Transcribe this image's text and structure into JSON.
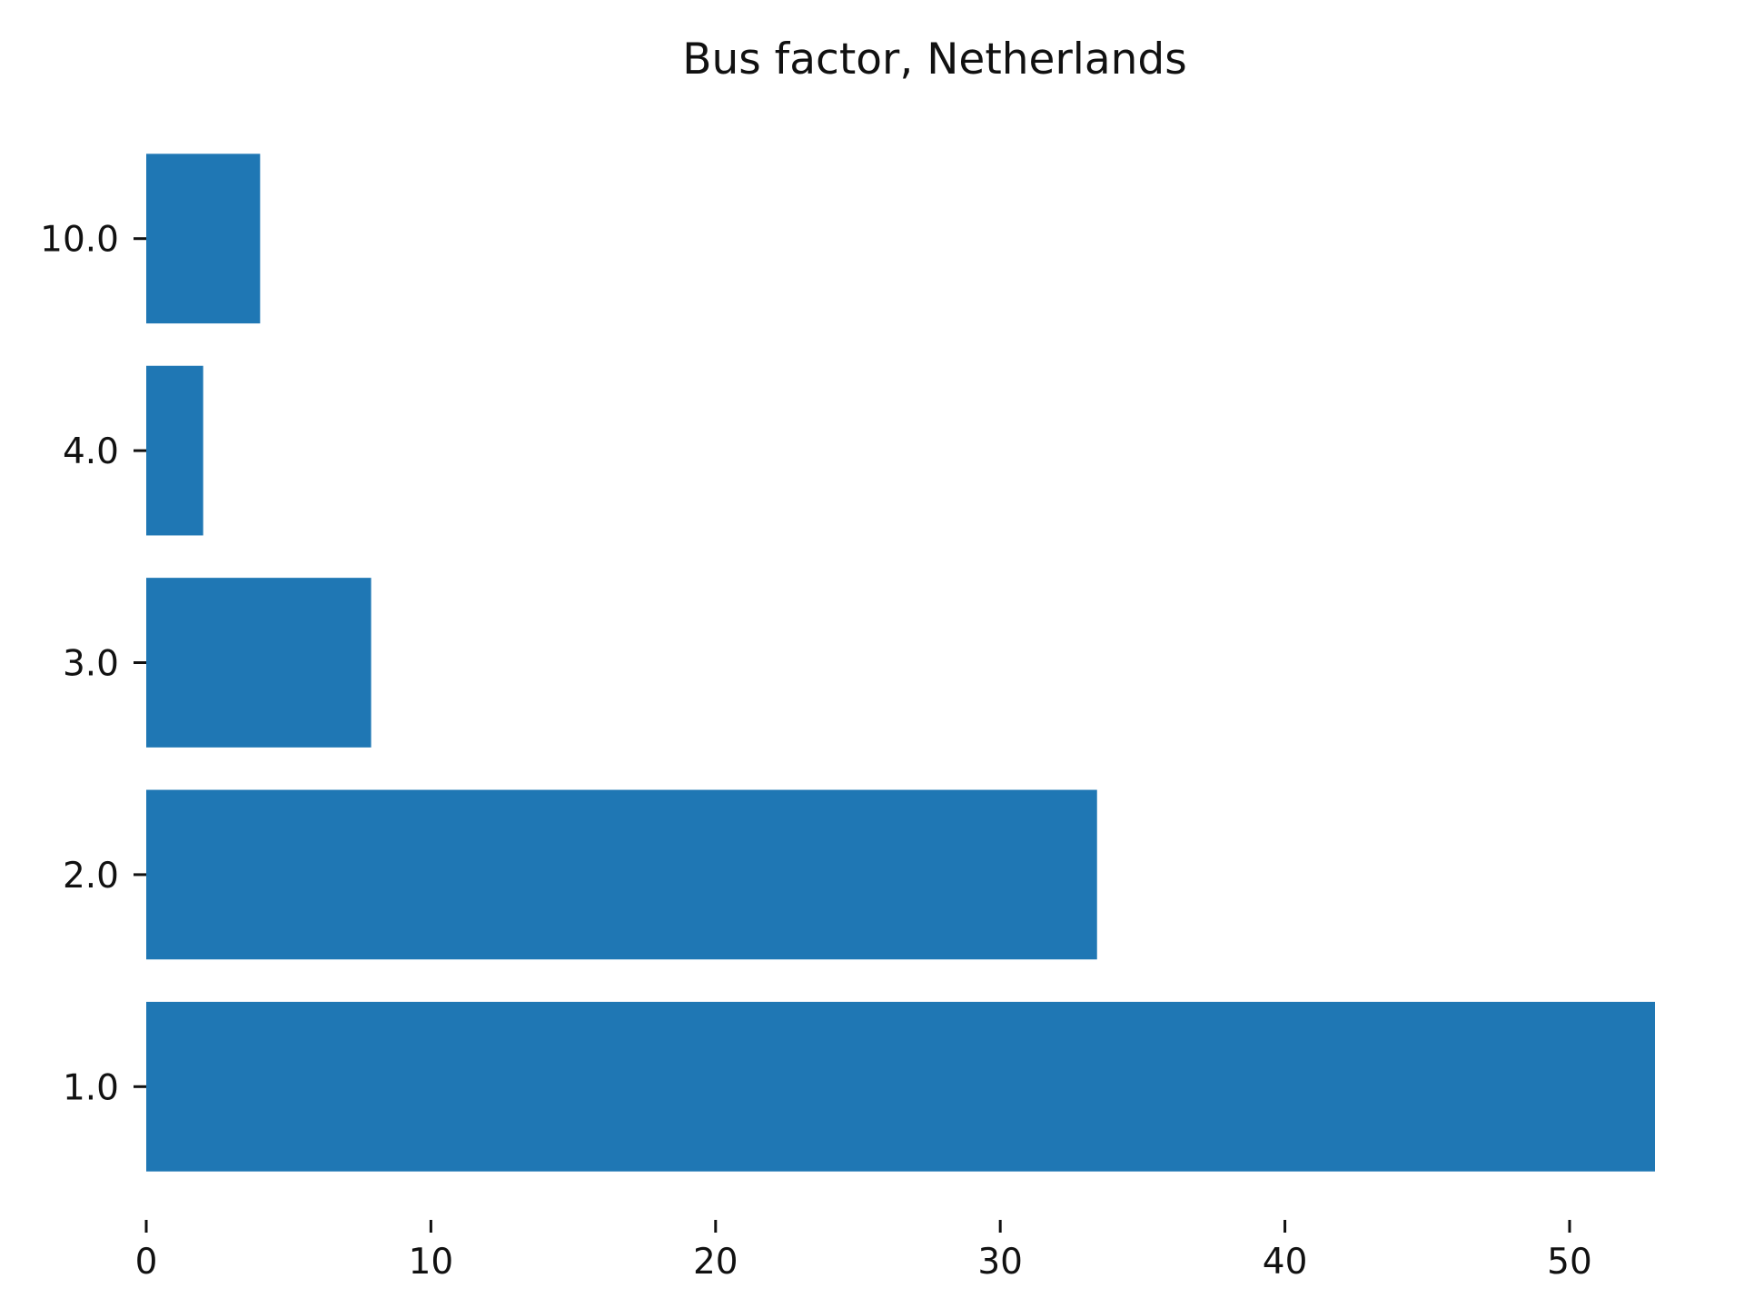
{
  "chart_data": {
    "type": "bar",
    "orientation": "horizontal",
    "title": "Bus factor, Netherlands",
    "xlabel": "",
    "ylabel": "",
    "categories": [
      "1.0",
      "2.0",
      "3.0",
      "4.0",
      "10.0"
    ],
    "values": [
      53,
      33.4,
      7.9,
      2,
      4
    ],
    "xlim": [
      0,
      53
    ],
    "xticks": [
      0,
      10,
      20,
      30,
      40,
      50
    ],
    "xtick_labels": [
      "0",
      "10",
      "20",
      "30",
      "40",
      "50"
    ],
    "grid": false,
    "legend": "none",
    "bar_color": "#1f77b4"
  }
}
